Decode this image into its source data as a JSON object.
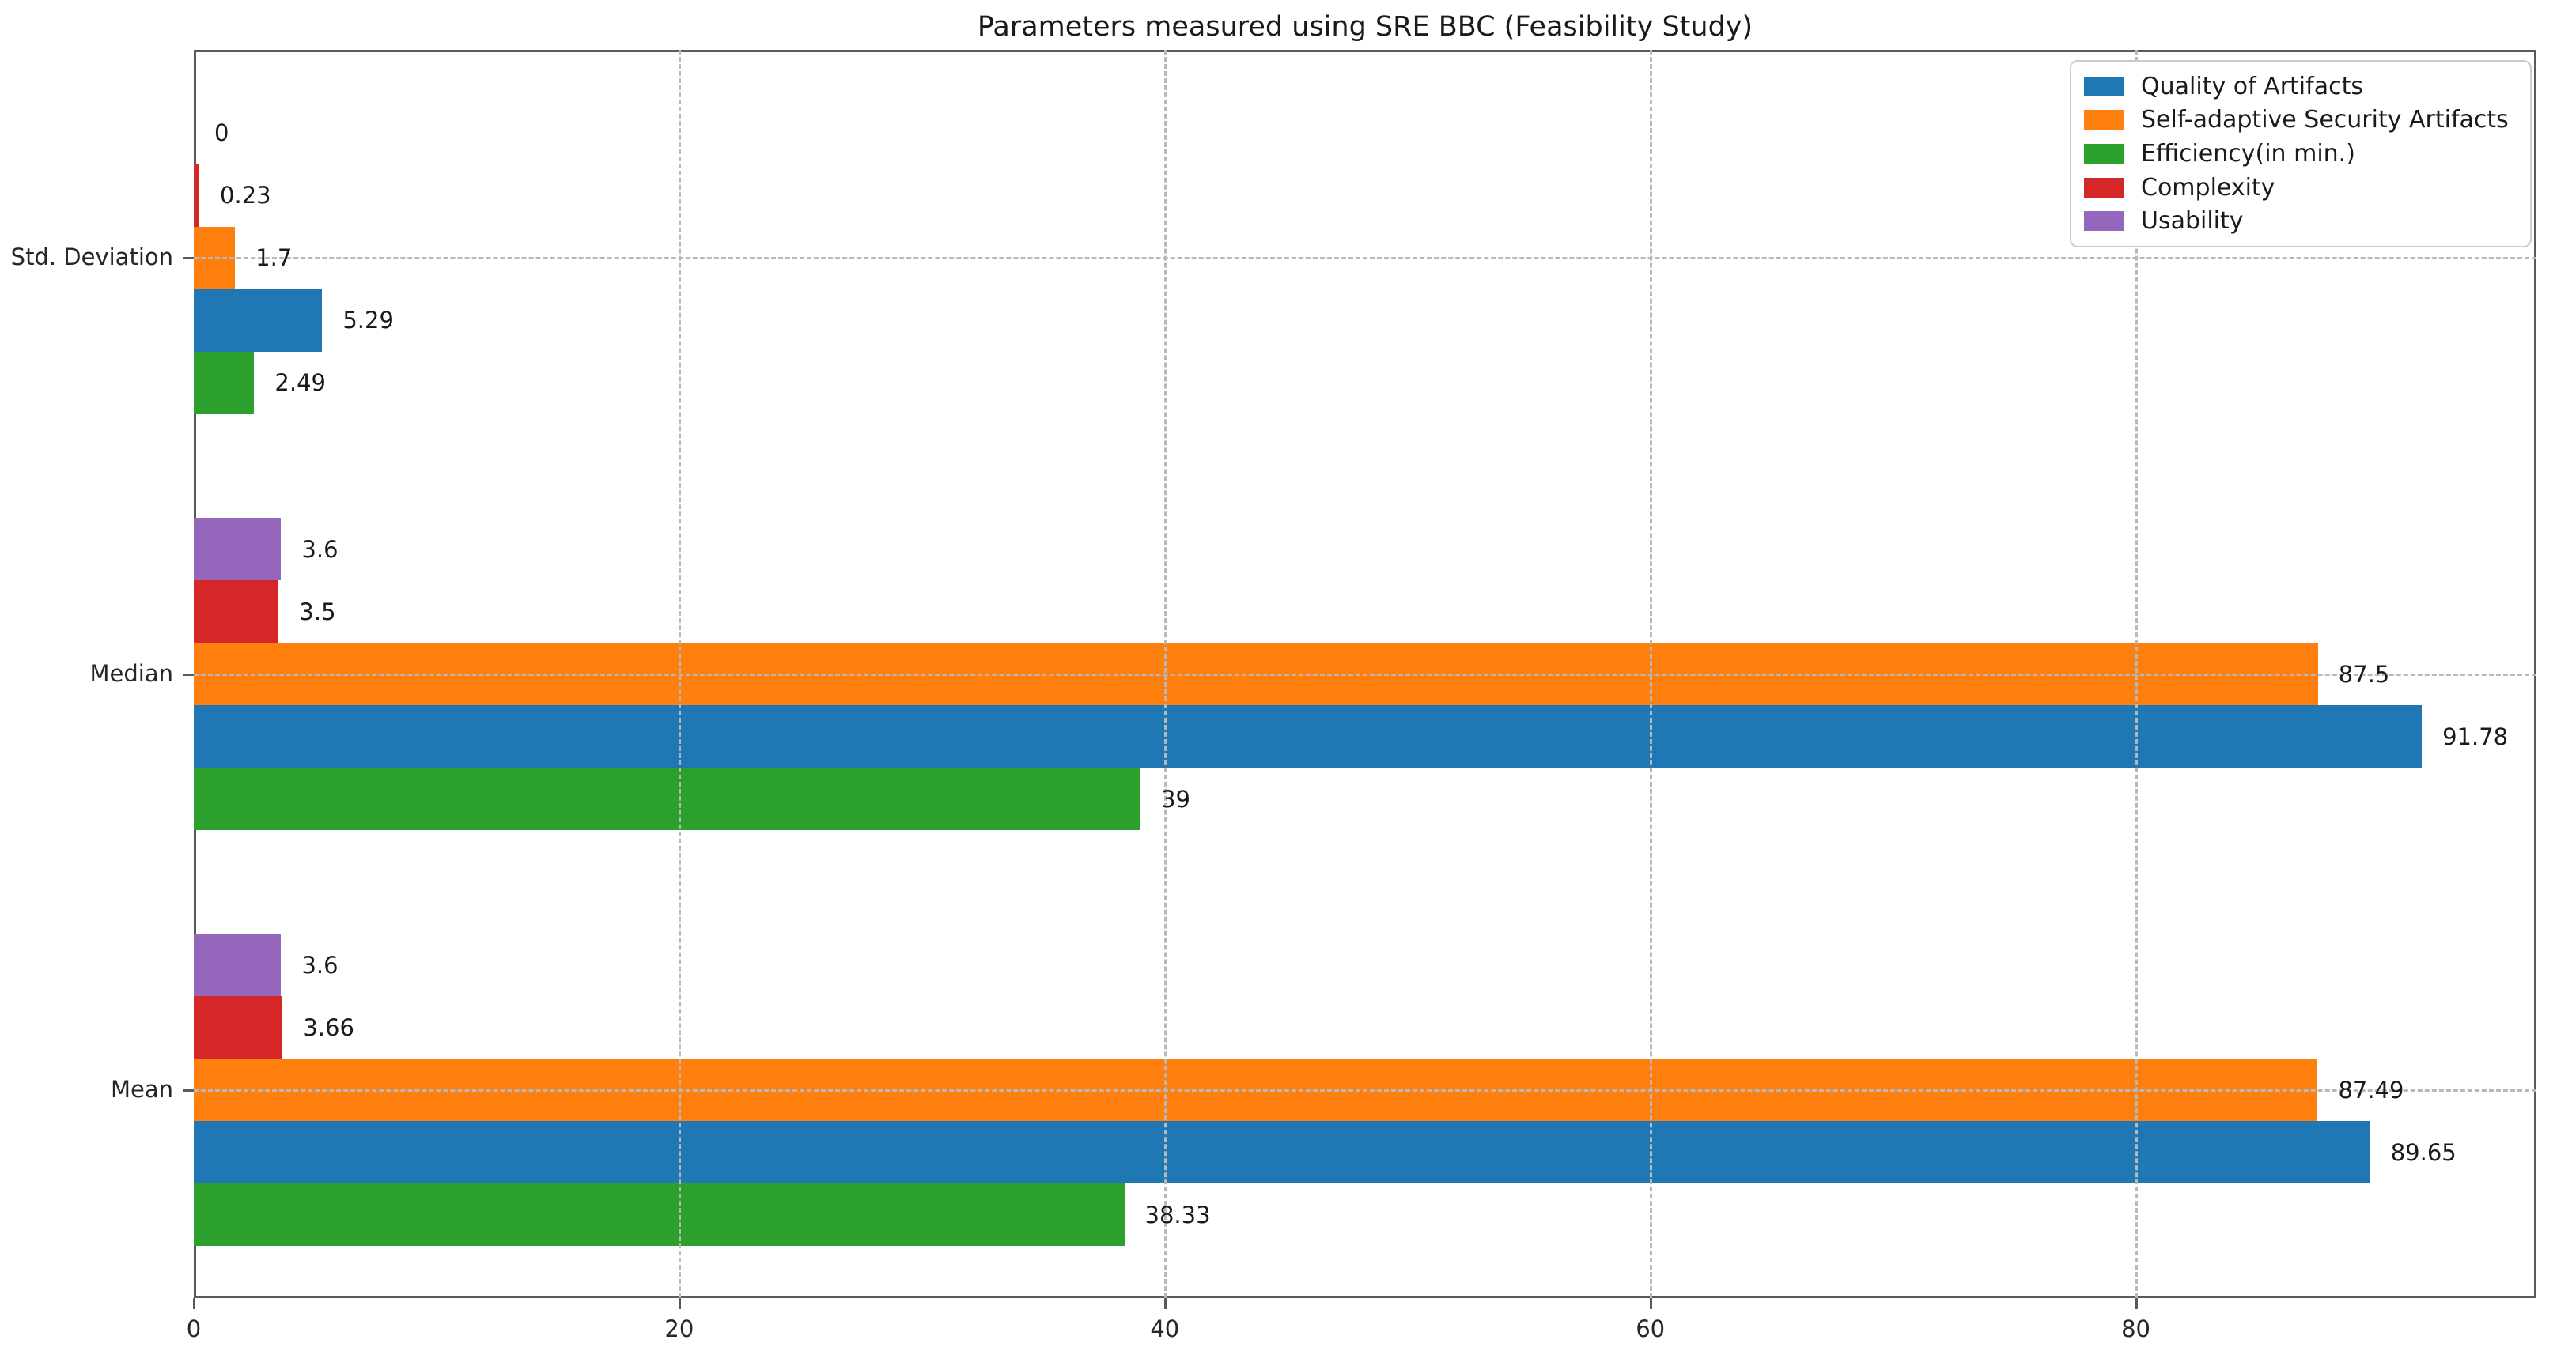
{
  "title": "Parameters measured using SRE BBC (Feasibility Study)",
  "chart_data": {
    "type": "bar",
    "orientation": "horizontal",
    "title": "Parameters measured using SRE BBC (Feasibility Study)",
    "categories_top_to_bottom": [
      "Std. Deviation",
      "Median",
      "Mean"
    ],
    "row_order_note": "within each category group, bars top to bottom: Usability, Complexity, Self-adaptive Security Artifacts, Quality of Artifacts, Efficiency(in min.)",
    "series": [
      {
        "name": "Quality of Artifacts",
        "color": "#1f77b4",
        "row": 3,
        "values": [
          5.29,
          91.78,
          89.65
        ],
        "labels": [
          "5.29",
          "91.78",
          "89.65"
        ]
      },
      {
        "name": "Self-adaptive Security Artifacts",
        "color": "#ff7f0e",
        "row": 2,
        "values": [
          1.7,
          87.5,
          87.49
        ],
        "labels": [
          "1.7",
          "87.5",
          "87.49"
        ]
      },
      {
        "name": "Efficiency(in min.)",
        "color": "#2ca02c",
        "row": 4,
        "values": [
          2.49,
          39,
          38.33
        ],
        "labels": [
          "2.49",
          "39",
          "38.33"
        ]
      },
      {
        "name": "Complexity",
        "color": "#d62728",
        "row": 1,
        "values": [
          0.23,
          3.5,
          3.66
        ],
        "labels": [
          "0.23",
          "3.5",
          "3.66"
        ]
      },
      {
        "name": "Usability",
        "color": "#9467bd",
        "row": 0,
        "values": [
          0,
          3.6,
          3.6
        ],
        "labels": [
          "0",
          "3.6",
          "3.6"
        ]
      }
    ],
    "x_ticks": [
      0,
      20,
      40,
      60,
      80
    ],
    "x_tick_labels": [
      "0",
      "20",
      "40",
      "60",
      "80"
    ],
    "xlim": [
      0,
      96.5
    ],
    "ylabel": "",
    "xlabel": "",
    "grid": "dashed, vertical at x ticks and horizontal at category centers, drawn over bars",
    "legend_position": "upper right",
    "value_label_position": "right of bar end"
  },
  "colors": {
    "spine": "#5a5a5a",
    "gridline": "#b8b8b8",
    "text": "#1a1a1a",
    "background": "#ffffff"
  }
}
